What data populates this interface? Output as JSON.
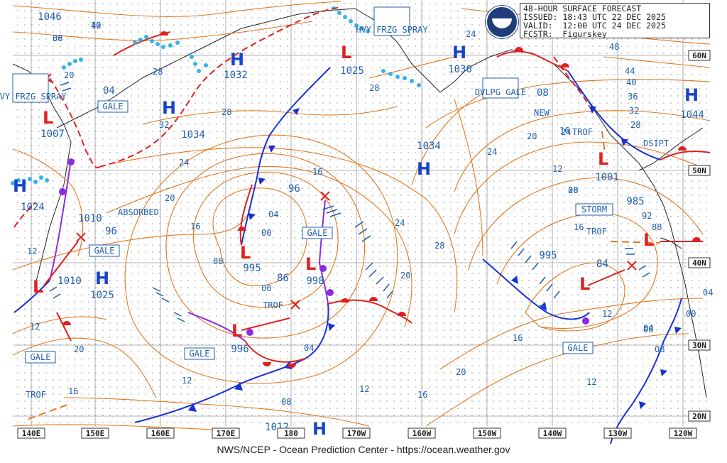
{
  "header": {
    "title": "48-HOUR SURFACE FORECAST",
    "issued_label": "ISSUED:",
    "issued": "18:43 UTC 22 DEC 2025",
    "valid_label": "VALID:",
    "valid": "12:00 UTC 24 DEC 2025",
    "forecaster_label": "FCSTR:",
    "forecaster": "Figurskey"
  },
  "footer": "NWS/NCEP - Ocean Prediction Center - https://ocean.weather.gov",
  "longitude_labels": [
    "140E",
    "150E",
    "160E",
    "170E",
    "180",
    "170W",
    "160W",
    "150W",
    "140W",
    "130W",
    "120W"
  ],
  "latitude_labels": [
    "60N",
    "50N",
    "40N",
    "30N",
    "20N"
  ],
  "colors": {
    "isobar": "#e07820",
    "label_blue": "#1f5fae",
    "high": "#1a44c8",
    "low": "#e02020",
    "cold_front": "#1830d8",
    "warm_front": "#e02020",
    "occluded": "#8a2be2",
    "ice": "#33b3e8",
    "grid": "#9a9a9a"
  },
  "pressure_centers": [
    {
      "type": "H",
      "value": "1046"
    },
    {
      "type": "H",
      "value": "1032"
    },
    {
      "type": "H",
      "value": "1034"
    },
    {
      "type": "H",
      "value": "1030"
    },
    {
      "type": "H",
      "value": "1034"
    },
    {
      "type": "H",
      "value": "1044"
    },
    {
      "type": "H",
      "value": "1024"
    },
    {
      "type": "H",
      "value": "1025"
    },
    {
      "type": "H",
      "value": "1012"
    },
    {
      "type": "L",
      "value": "1025"
    },
    {
      "type": "L",
      "value": "1007"
    },
    {
      "type": "L",
      "value": "1010"
    },
    {
      "type": "L",
      "value": "1001"
    },
    {
      "type": "L",
      "value": "985"
    },
    {
      "type": "L",
      "value": "995"
    },
    {
      "type": "L",
      "value": "998"
    },
    {
      "type": "L",
      "value": "996"
    },
    {
      "type": "L",
      "value": "995"
    }
  ],
  "warning_boxes": [
    "HVY FRZG SPRAY",
    "HVY FRZG SPRAY",
    "GALE",
    "GALE",
    "GALE",
    "GALE",
    "GALE",
    "GALE",
    "DVLPG GALE",
    "STORM"
  ],
  "text_labels": [
    "ABSORBED",
    "TROF",
    "TROF",
    "TROF",
    "TROF",
    "NEW",
    "DSIPT",
    "04",
    "08",
    "86",
    "84",
    "96",
    "96",
    "1010",
    "92",
    "88"
  ],
  "isobar_labels": [
    "40",
    "36",
    "20",
    "28",
    "28",
    "32",
    "24",
    "20",
    "16",
    "12",
    "12",
    "20",
    "16",
    "08",
    "04",
    "00",
    "12",
    "16",
    "24",
    "28",
    "20",
    "24",
    "16",
    "12",
    "08",
    "04",
    "00",
    "20",
    "16",
    "12",
    "08",
    "04",
    "28",
    "24",
    "20",
    "16",
    "12",
    "08",
    "48",
    "44",
    "40",
    "36",
    "32",
    "28",
    "24",
    "20",
    "16",
    "12",
    "08",
    "04",
    "00",
    "12",
    "08"
  ]
}
